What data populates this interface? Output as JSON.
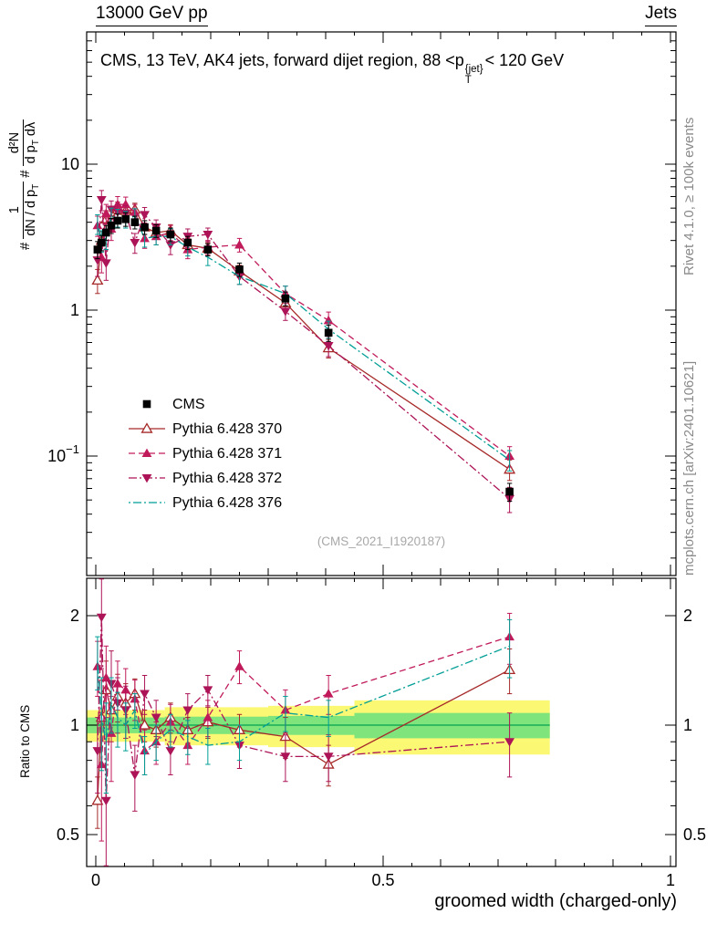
{
  "header": {
    "left": "13000 GeV pp",
    "right": "Jets"
  },
  "title": {
    "prefix": "CMS, 13 TeV, AK4 jets, forward dijet region, 88 <p",
    "sup": "{jet}",
    "sub": "T",
    "suffix": "< 120 GeV"
  },
  "ylabel": {
    "hash1": "#",
    "f1_num": "1",
    "f1_den": "dN / d p",
    "f1_den_sub": "T",
    "hash2": "#",
    "f2_num": "d²N",
    "f2_den_a": "d p",
    "f2_den_sub": "T",
    "f2_den_b": " dλ"
  },
  "ratio_ylabel": "Ratio to CMS",
  "xlabel": "groomed width (charged-only)",
  "watermark": "(CMS_2021_I1920187)",
  "side_notes": {
    "rivet": "Rivet 4.1.0, ≥ 100k events",
    "mcplots": "mcplots.cern.ch [arXiv:2401.10621]"
  },
  "chart_data": {
    "type": "line",
    "title": "CMS, 13 TeV, AK4 jets, forward dijet region, 88 < pT{jet} < 120 GeV",
    "xlabel": "groomed width (charged-only)",
    "ylabel": "1/(dN/dpT) d²N/(dpT dλ)",
    "xlim": [
      0,
      1
    ],
    "x_ticks": [
      0,
      0.5,
      1
    ],
    "main": {
      "ylog": true,
      "y_ticks": [
        0.1,
        1,
        10
      ],
      "ylim": [
        0.02,
        70
      ]
    },
    "ratio": {
      "ylog": true,
      "y_ticks": [
        0.5,
        1,
        2
      ],
      "ylim": [
        0.41,
        2.5
      ]
    },
    "x": [
      0.003,
      0.01,
      0.018,
      0.027,
      0.038,
      0.052,
      0.068,
      0.085,
      0.105,
      0.13,
      0.16,
      0.195,
      0.25,
      0.33,
      0.405,
      0.72
    ],
    "series": [
      {
        "label": "CMS",
        "color": "#000000",
        "marker": "square",
        "line": false,
        "dash": "",
        "in_ratio": false,
        "values": [
          2.6,
          2.9,
          3.4,
          3.8,
          4.1,
          4.2,
          4.0,
          3.7,
          3.5,
          3.3,
          2.9,
          2.6,
          1.9,
          1.2,
          0.7,
          0.057
        ],
        "errors": [
          0.35,
          0.35,
          0.4,
          0.45,
          0.45,
          0.45,
          0.4,
          0.4,
          0.35,
          0.35,
          0.3,
          0.25,
          0.2,
          0.13,
          0.09,
          0.008
        ]
      },
      {
        "label": "Pythia 6.428 370",
        "color": "#a62929",
        "marker": "triangle-open",
        "line": true,
        "dash": "",
        "values": [
          1.6,
          3.0,
          4.2,
          4.2,
          4.9,
          4.8,
          4.9,
          3.7,
          3.4,
          3.5,
          2.8,
          2.65,
          1.85,
          1.12,
          0.55,
          0.081
        ],
        "errors": [
          0.3,
          0.45,
          0.6,
          0.55,
          0.6,
          0.55,
          0.5,
          0.4,
          0.35,
          0.35,
          0.3,
          0.25,
          0.18,
          0.13,
          0.08,
          0.013
        ],
        "ratio": [
          0.62,
          1.05,
          1.25,
          1.1,
          1.2,
          1.15,
          1.22,
          1.0,
          0.97,
          1.05,
          0.97,
          1.02,
          0.97,
          0.93,
          0.78,
          1.42
        ],
        "ratio_errors": [
          0.1,
          0.28,
          0.25,
          0.2,
          0.18,
          0.15,
          0.12,
          0.1,
          0.1,
          0.1,
          0.08,
          0.1,
          0.1,
          0.12,
          0.1,
          0.2
        ]
      },
      {
        "label": "Pythia 6.428 371",
        "color": "#c01a5b",
        "marker": "triangle",
        "line": true,
        "dash": "7,4",
        "values": [
          3.8,
          2.3,
          4.6,
          3.6,
          5.3,
          5.3,
          4.7,
          3.1,
          3.2,
          3.4,
          2.6,
          2.7,
          2.8,
          1.3,
          0.85,
          0.1
        ],
        "errors": [
          0.6,
          0.5,
          0.7,
          0.6,
          0.7,
          0.65,
          0.6,
          0.45,
          0.4,
          0.4,
          0.35,
          0.3,
          0.3,
          0.16,
          0.12,
          0.016
        ],
        "ratio": [
          1.45,
          0.78,
          1.35,
          0.95,
          1.3,
          1.25,
          1.18,
          0.85,
          0.9,
          1.02,
          0.88,
          1.05,
          1.45,
          1.1,
          1.22,
          1.75
        ],
        "ratio_errors": [
          0.25,
          0.3,
          0.3,
          0.25,
          0.2,
          0.18,
          0.15,
          0.12,
          0.12,
          0.12,
          0.1,
          0.12,
          0.15,
          0.15,
          0.15,
          0.28
        ]
      },
      {
        "label": "Pythia 6.428 372",
        "color": "#ad1457",
        "marker": "triangle-down",
        "line": true,
        "dash": "9,3,2,3",
        "values": [
          2.2,
          5.7,
          2.1,
          4.9,
          4.7,
          4.6,
          2.9,
          4.5,
          3.7,
          2.8,
          3.2,
          3.3,
          1.7,
          0.98,
          0.57,
          0.051
        ],
        "errors": [
          0.5,
          0.9,
          0.5,
          0.7,
          0.65,
          0.6,
          0.45,
          0.55,
          0.45,
          0.4,
          0.4,
          0.35,
          0.2,
          0.13,
          0.09,
          0.01
        ],
        "ratio": [
          0.85,
          1.98,
          0.62,
          1.3,
          1.15,
          1.1,
          0.73,
          1.22,
          1.05,
          0.85,
          1.1,
          1.25,
          0.88,
          0.82,
          0.82,
          0.9
        ],
        "ratio_errors": [
          0.2,
          0.55,
          0.28,
          0.3,
          0.2,
          0.18,
          0.15,
          0.15,
          0.12,
          0.12,
          0.12,
          0.12,
          0.12,
          0.12,
          0.12,
          0.18
        ]
      },
      {
        "label": "Pythia 6.428 376",
        "color": "#009e96",
        "marker": "none",
        "line": true,
        "dash": "2,3,9,3",
        "values": [
          3.9,
          3.0,
          3.1,
          4.4,
          4.3,
          4.2,
          4.4,
          3.1,
          3.2,
          3.2,
          2.7,
          2.3,
          1.7,
          1.3,
          0.74,
          0.094
        ],
        "errors": [
          0.6,
          0.5,
          0.5,
          0.6,
          0.6,
          0.55,
          0.55,
          0.4,
          0.4,
          0.4,
          0.35,
          0.28,
          0.2,
          0.16,
          0.1,
          0.015
        ],
        "ratio": [
          1.5,
          1.05,
          0.9,
          1.15,
          1.05,
          1.0,
          1.1,
          0.83,
          0.9,
          0.97,
          0.93,
          0.88,
          0.9,
          1.08,
          1.05,
          1.65
        ],
        "ratio_errors": [
          0.25,
          0.3,
          0.25,
          0.2,
          0.18,
          0.15,
          0.12,
          0.1,
          0.1,
          0.1,
          0.1,
          0.1,
          0.1,
          0.12,
          0.12,
          0.3
        ]
      }
    ],
    "ratio_bands": [
      {
        "x0": 0,
        "x1": 0.12,
        "yellow": 0.1,
        "green": 0.05
      },
      {
        "x0": 0.12,
        "x1": 0.3,
        "yellow": 0.12,
        "green": 0.055
      },
      {
        "x0": 0.3,
        "x1": 0.45,
        "yellow": 0.13,
        "green": 0.06
      },
      {
        "x0": 0.45,
        "x1": 0.79,
        "yellow": 0.17,
        "green": 0.08
      }
    ],
    "band_colors": {
      "yellow": "#fbf874",
      "green": "#7fe47c",
      "line": "#00a24f"
    }
  }
}
